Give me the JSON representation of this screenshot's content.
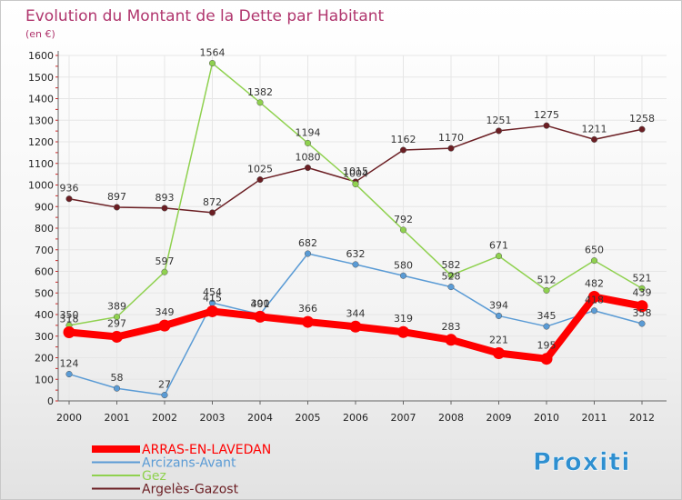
{
  "chart_data": {
    "type": "line",
    "title": "Evolution du Montant de la Dette par Habitant",
    "subtitle": "(en €)",
    "x": [
      "2000",
      "2001",
      "2002",
      "2003",
      "2004",
      "2005",
      "2006",
      "2007",
      "2008",
      "2009",
      "2010",
      "2011",
      "2012"
    ],
    "ylim": [
      0,
      1600
    ],
    "yticks": [
      0,
      100,
      200,
      300,
      400,
      500,
      600,
      700,
      800,
      900,
      1000,
      1100,
      1200,
      1300,
      1400,
      1500,
      1600
    ],
    "grid": true,
    "legend_position": "bottom-left",
    "series": [
      {
        "name": "ARRAS-EN-LAVEDAN",
        "color": "#ff0000",
        "values": [
          318,
          297,
          349,
          415,
          390,
          366,
          344,
          319,
          283,
          221,
          195,
          482,
          439
        ]
      },
      {
        "name": "Arcizans-Avant",
        "color": "#5a9bd5",
        "values": [
          124,
          58,
          27,
          454,
          401,
          682,
          632,
          580,
          528,
          394,
          345,
          418,
          358
        ]
      },
      {
        "name": "Gez",
        "color": "#8fd14f",
        "values": [
          350,
          389,
          597,
          1564,
          1382,
          1194,
          1004,
          792,
          582,
          671,
          512,
          650,
          521
        ]
      },
      {
        "name": "Argelès-Gazost",
        "color": "#6b1e23",
        "values": [
          936,
          897,
          893,
          872,
          1025,
          1080,
          1015,
          1162,
          1170,
          1251,
          1275,
          1211,
          1258
        ]
      }
    ]
  },
  "logo": {
    "text": "Proxiti"
  }
}
